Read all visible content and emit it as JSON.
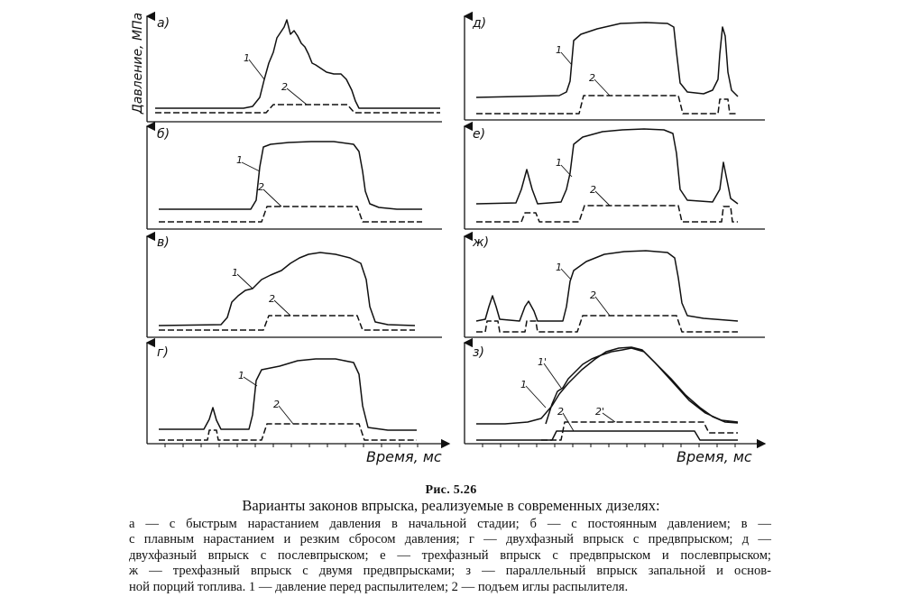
{
  "figure": {
    "axis_label_y": "Давление, МПа",
    "axis_label_x": "Время, мс",
    "panels": [
      {
        "id": "a",
        "letter": "а)",
        "curve_labels": [
          "1",
          "2"
        ]
      },
      {
        "id": "b",
        "letter": "б)",
        "curve_labels": [
          "1",
          "2"
        ]
      },
      {
        "id": "v",
        "letter": "в)",
        "curve_labels": [
          "1",
          "2"
        ]
      },
      {
        "id": "g",
        "letter": "г)",
        "curve_labels": [
          "1",
          "2"
        ]
      },
      {
        "id": "d",
        "letter": "д)",
        "curve_labels": [
          "1",
          "2"
        ]
      },
      {
        "id": "e",
        "letter": "е)",
        "curve_labels": [
          "1",
          "2"
        ]
      },
      {
        "id": "zh",
        "letter": "ж)",
        "curve_labels": [
          "1",
          "2"
        ]
      },
      {
        "id": "z",
        "letter": "з)",
        "curve_labels": [
          "1",
          "1'",
          "2",
          "2'"
        ]
      }
    ]
  },
  "caption": {
    "number": "Рис. 5.26",
    "title": "Варианты законов впрыска, реализуемые в современных дизелях:",
    "legend_lines": [
      "а — с быстрым нарастанием давления в начальной стадии; б — с постоянным давлением; в —",
      "с плавным нарастанием и резким сбросом давления; г — двухфазный впрыск с предвпрыском; д —",
      "двухфазный впрыск с послевпрыском; е — трехфазный впрыск с предвпрыском и послевпрыском;",
      "ж — трехфазный впрыск с двумя предвпрысками; з — параллельный впрыск запальной и основ-",
      "ной порций топлива. 1 — давление перед распылителем; 2 — подъем иглы распылителя."
    ]
  }
}
